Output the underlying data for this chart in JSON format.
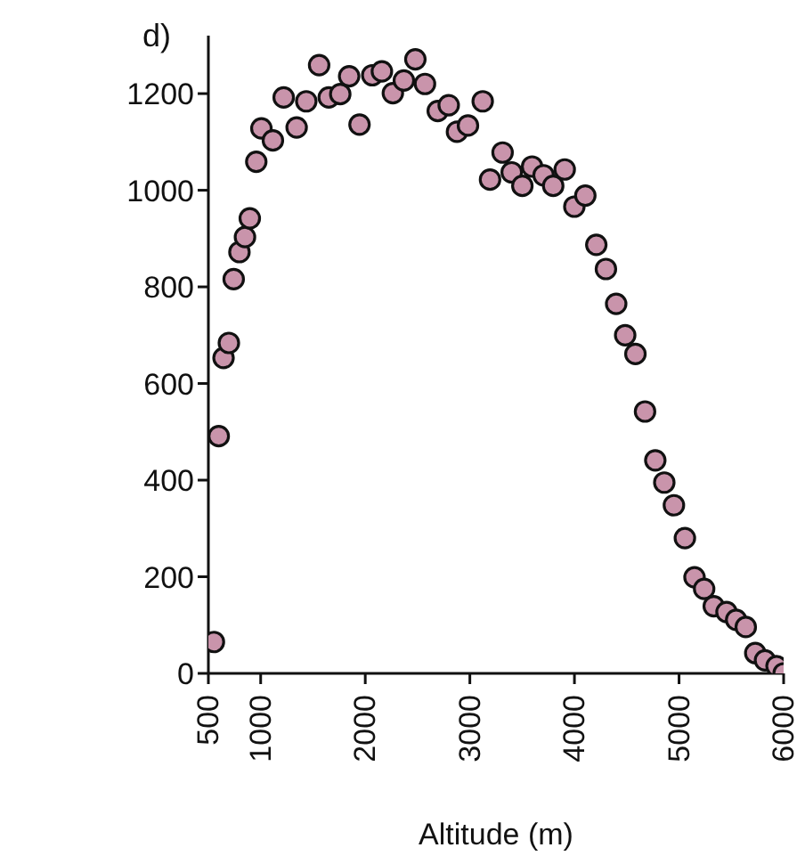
{
  "chart_data": {
    "type": "scatter",
    "xlabel": "Altitude (m)",
    "annotations": [
      "d)"
    ],
    "xlim": [
      500,
      6000
    ],
    "xticks": [
      500,
      1000,
      2000,
      3000,
      4000,
      5000,
      6000
    ],
    "ylim": [
      0,
      1320
    ],
    "yticks": [
      0,
      200,
      400,
      600,
      800,
      1000,
      1200
    ],
    "grid": false,
    "marker": "circle",
    "series": [
      {
        "color": "#c994ab",
        "x": [
          553,
          599,
          645,
          696,
          742,
          797,
          850,
          896,
          958,
          1007,
          1117,
          1220,
          1344,
          1436,
          1559,
          1651,
          1761,
          1846,
          1945,
          2067,
          2159,
          2264,
          2369,
          2479,
          2571,
          2693,
          2798,
          2877,
          2982,
          3123,
          3193,
          3313,
          3400,
          3502,
          3595,
          3705,
          3797,
          3907,
          3999,
          4104,
          4209,
          4301,
          4399,
          4485,
          4583,
          4675,
          4773,
          4859,
          4951,
          5056,
          5148,
          5240,
          5332,
          5454,
          5546,
          5638,
          5729,
          5822,
          5932,
          6000
        ],
        "values": [
          65,
          491,
          653,
          684,
          816,
          872,
          903,
          942,
          1059,
          1128,
          1103,
          1192,
          1130,
          1184,
          1259,
          1192,
          1199,
          1236,
          1136,
          1238,
          1246,
          1201,
          1227,
          1271,
          1220,
          1164,
          1176,
          1121,
          1134,
          1184,
          1022,
          1078,
          1037,
          1009,
          1049,
          1031,
          1009,
          1043,
          966,
          989,
          887,
          837,
          765,
          700,
          661,
          542,
          441,
          395,
          348,
          280,
          199,
          175,
          139,
          127,
          111,
          96,
          42,
          27,
          15,
          0
        ]
      }
    ]
  }
}
